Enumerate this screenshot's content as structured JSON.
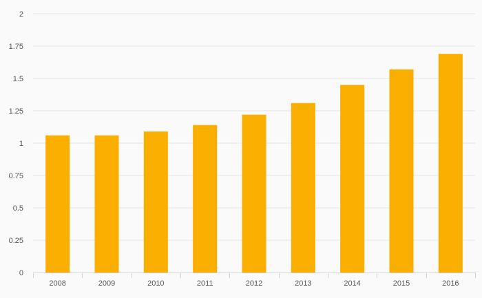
{
  "chart_data": {
    "type": "bar",
    "title": "",
    "xlabel": "",
    "ylabel": "",
    "categories": [
      "2008",
      "2009",
      "2010",
      "2011",
      "2012",
      "2013",
      "2014",
      "2015",
      "2016"
    ],
    "values": [
      1.06,
      1.06,
      1.09,
      1.14,
      1.22,
      1.31,
      1.45,
      1.57,
      1.69
    ],
    "ylim": [
      0,
      2
    ],
    "yticks": [
      "0",
      "0.25",
      "0.5",
      "0.75",
      "1",
      "1.25",
      "1.5",
      "1.75",
      "2"
    ],
    "grid": true,
    "legend": "none",
    "bar_color": "#f9ae00"
  }
}
